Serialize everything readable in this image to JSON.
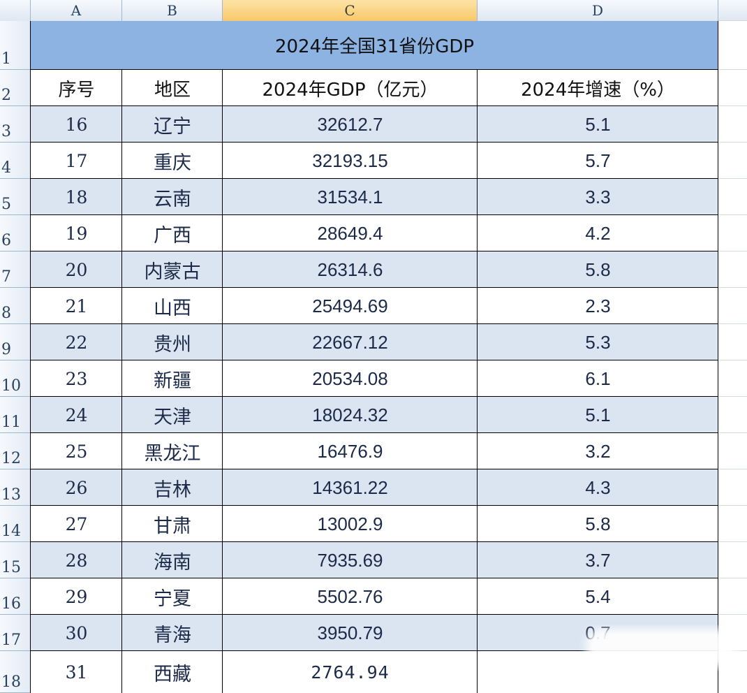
{
  "column_headers": [
    "A",
    "B",
    "C",
    "D"
  ],
  "selected_column": "C",
  "row_numbers": [
    "1",
    "2",
    "3",
    "4",
    "5",
    "6",
    "7",
    "8",
    "9",
    "10",
    "11",
    "12",
    "13",
    "14",
    "15",
    "16",
    "17",
    "18"
  ],
  "title": "2024年全国31省份GDP",
  "headers": {
    "seq": "序号",
    "region": "地区",
    "gdp": "2024年GDP（亿元）",
    "growth": "2024年增速（%）"
  },
  "rows": [
    {
      "seq": "16",
      "region": "辽宁",
      "gdp": "32612.7",
      "growth": "5.1"
    },
    {
      "seq": "17",
      "region": "重庆",
      "gdp": "32193.15",
      "growth": "5.7"
    },
    {
      "seq": "18",
      "region": "云南",
      "gdp": "31534.1",
      "growth": "3.3"
    },
    {
      "seq": "19",
      "region": "广西",
      "gdp": "28649.4",
      "growth": "4.2"
    },
    {
      "seq": "20",
      "region": "内蒙古",
      "gdp": "26314.6",
      "growth": "5.8"
    },
    {
      "seq": "21",
      "region": "山西",
      "gdp": "25494.69",
      "growth": "2.3"
    },
    {
      "seq": "22",
      "region": "贵州",
      "gdp": "22667.12",
      "growth": "5.3"
    },
    {
      "seq": "23",
      "region": "新疆",
      "gdp": "20534.08",
      "growth": "6.1"
    },
    {
      "seq": "24",
      "region": "天津",
      "gdp": "18024.32",
      "growth": "5.1"
    },
    {
      "seq": "25",
      "region": "黑龙江",
      "gdp": "16476.9",
      "growth": "3.2"
    },
    {
      "seq": "26",
      "region": "吉林",
      "gdp": "14361.22",
      "growth": "4.3"
    },
    {
      "seq": "27",
      "region": "甘肃",
      "gdp": "13002.9",
      "growth": "5.8"
    },
    {
      "seq": "28",
      "region": "海南",
      "gdp": "7935.69",
      "growth": "3.7"
    },
    {
      "seq": "29",
      "region": "宁夏",
      "gdp": "5502.76",
      "growth": "5.4"
    },
    {
      "seq": "30",
      "region": "青海",
      "gdp": "3950.79",
      "growth": "0.7"
    },
    {
      "seq": "31",
      "region": "西藏",
      "gdp": "2764.94",
      "growth": ""
    }
  ],
  "colors": {
    "title_fill": "#8db3e2",
    "band_fill": "#dbe5f1",
    "selected_header": "#f8c86a",
    "text": "#1c2a4a"
  }
}
